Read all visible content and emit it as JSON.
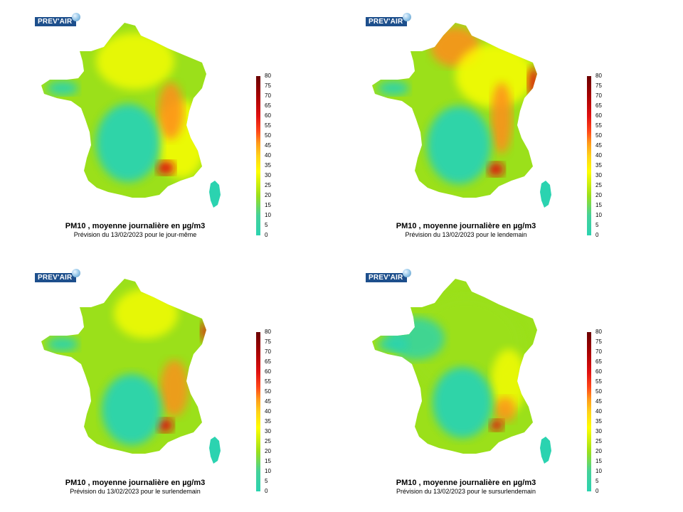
{
  "logo_text": "PREV'AIR",
  "legend": {
    "ticks": [
      "80",
      "75",
      "70",
      "65",
      "60",
      "55",
      "50",
      "45",
      "40",
      "35",
      "30",
      "25",
      "20",
      "15",
      "10",
      "5",
      "0"
    ]
  },
  "panels": [
    {
      "title": "PM10 , moyenne journalière en µg/m3",
      "subtitle": "Prévision du 13/02/2023 pour le jour-même"
    },
    {
      "title": "PM10 , moyenne journalière en µg/m3",
      "subtitle": "Prévision du 13/02/2023 pour le lendemain"
    },
    {
      "title": "PM10 , moyenne journalière en µg/m3",
      "subtitle": "Prévision du 13/02/2023 pour le surlendemain"
    },
    {
      "title": "PM10 , moyenne journalière en µg/m3",
      "subtitle": "Prévision du 13/02/2023 pour le sursurlendemain"
    }
  ],
  "colors": {
    "low": "#2bd3b0",
    "lowmid": "#9be01a",
    "mid": "#ffff00",
    "high": "#ff8c1a",
    "very_high": "#e01010"
  }
}
